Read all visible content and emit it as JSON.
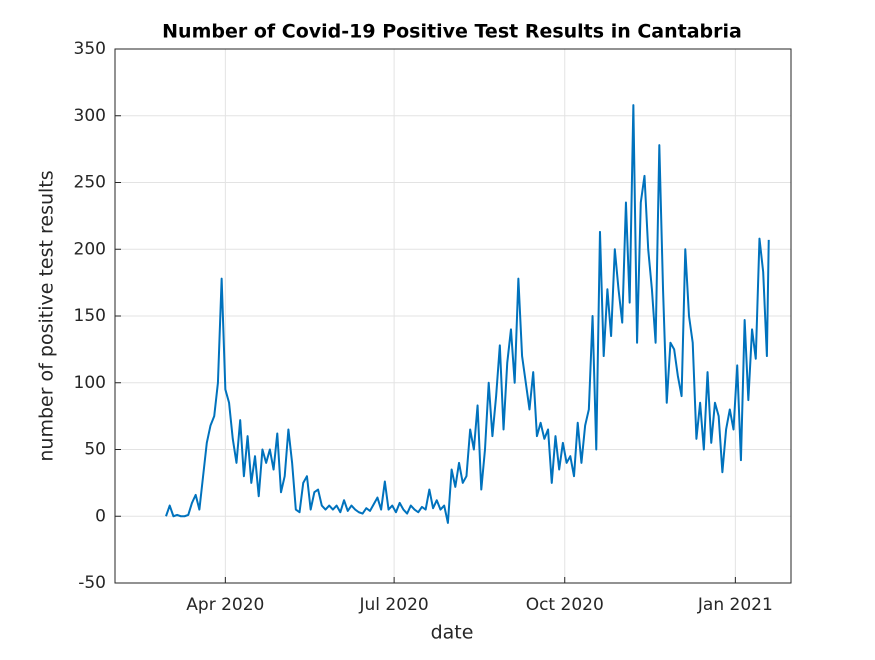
{
  "chart_data": {
    "type": "line",
    "title": "Number of Covid-19 Positive Test Results in Cantabria",
    "xlabel": "date",
    "ylabel": "number of positive test results",
    "xlim": [
      31.5,
      396
    ],
    "ylim": [
      -50,
      350
    ],
    "xticks": [
      {
        "value": 91,
        "label": "Apr 2020"
      },
      {
        "value": 182,
        "label": "Jul 2020"
      },
      {
        "value": 274,
        "label": "Oct 2020"
      },
      {
        "value": 366,
        "label": "Jan 2021"
      }
    ],
    "yticks": [
      -50,
      0,
      50,
      100,
      150,
      200,
      250,
      300,
      350
    ],
    "grid": true,
    "series": [
      {
        "color": "#0072bd",
        "x": [
          59,
          61,
          63,
          65,
          67,
          69,
          71,
          73,
          75,
          77,
          79,
          81,
          83,
          85,
          87,
          89,
          91,
          93,
          95,
          97,
          99,
          101,
          103,
          105,
          107,
          109,
          111,
          113,
          115,
          117,
          119,
          121,
          123,
          125,
          127,
          129,
          131,
          133,
          135,
          137,
          139,
          141,
          143,
          145,
          147,
          149,
          151,
          153,
          155,
          157,
          159,
          161,
          163,
          165,
          167,
          169,
          171,
          173,
          175,
          177,
          179,
          181,
          183,
          185,
          187,
          189,
          191,
          193,
          195,
          197,
          199,
          201,
          203,
          205,
          207,
          209,
          211,
          213,
          215,
          217,
          219,
          221,
          223,
          225,
          227,
          229,
          231,
          233,
          235,
          237,
          239,
          241,
          243,
          245,
          247,
          249,
          251,
          253,
          255,
          257,
          259,
          261,
          263,
          265,
          267,
          269,
          271,
          273,
          275,
          277,
          279,
          281,
          283,
          285,
          287,
          289,
          291,
          293,
          295,
          297,
          299,
          301,
          303,
          305,
          307,
          309,
          311,
          313,
          315,
          317,
          319,
          321,
          323,
          325,
          327,
          329,
          331,
          333,
          335,
          337,
          339,
          341,
          343,
          345,
          347,
          349,
          351,
          353,
          355,
          357,
          359,
          361,
          363,
          365,
          367,
          369,
          371,
          373,
          375,
          377,
          379,
          381,
          383,
          384
        ],
        "values": [
          0,
          8,
          0,
          1,
          0,
          0,
          1,
          10,
          16,
          5,
          30,
          55,
          68,
          75,
          100,
          178,
          95,
          85,
          58,
          40,
          72,
          30,
          60,
          25,
          45,
          15,
          50,
          40,
          50,
          35,
          62,
          18,
          30,
          65,
          40,
          5,
          3,
          25,
          30,
          5,
          18,
          20,
          8,
          5,
          8,
          5,
          8,
          3,
          12,
          4,
          8,
          5,
          3,
          2,
          6,
          4,
          9,
          14,
          5,
          26,
          5,
          8,
          3,
          10,
          5,
          2,
          8,
          5,
          3,
          7,
          5,
          20,
          6,
          12,
          5,
          8,
          -5,
          35,
          22,
          40,
          25,
          30,
          65,
          50,
          83,
          20,
          50,
          100,
          60,
          90,
          128,
          65,
          115,
          140,
          100,
          178,
          120,
          100,
          80,
          108,
          60,
          70,
          58,
          65,
          25,
          60,
          35,
          55,
          40,
          45,
          30,
          70,
          40,
          68,
          80,
          150,
          50,
          213,
          120,
          170,
          135,
          200,
          170,
          145,
          235,
          160,
          308,
          130,
          235,
          255,
          200,
          170,
          130,
          278,
          170,
          85,
          130,
          125,
          105,
          90,
          200,
          150,
          130,
          58,
          85,
          50,
          108,
          55,
          85,
          75,
          33,
          65,
          80,
          65,
          113,
          42,
          147,
          87,
          140,
          118,
          208,
          183,
          120,
          207
        ]
      }
    ]
  }
}
